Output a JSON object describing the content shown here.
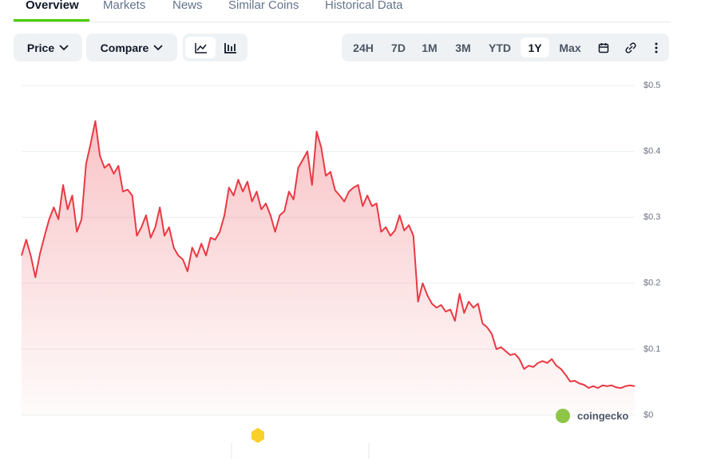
{
  "tabs": [
    "Overview",
    "Markets",
    "News",
    "Similar Coins",
    "Historical Data"
  ],
  "controls": [
    "Price",
    "Compare"
  ],
  "ranges": [
    "24H",
    "7D",
    "1M",
    "3M",
    "YTD",
    "1Y",
    "Max"
  ],
  "watermark": "coingecko",
  "chart_data": {
    "type": "line",
    "series": [
      {
        "color": "#ea3943",
        "values": [
          0.242,
          0.266,
          0.242,
          0.209,
          0.245,
          0.272,
          0.297,
          0.315,
          0.297,
          0.349,
          0.312,
          0.333,
          0.278,
          0.297,
          0.381,
          0.412,
          0.446,
          0.393,
          0.375,
          0.381,
          0.366,
          0.378,
          0.339,
          0.342,
          0.333,
          0.272,
          0.285,
          0.303,
          0.269,
          0.285,
          0.315,
          0.272,
          0.285,
          0.254,
          0.242,
          0.236,
          0.218,
          0.254,
          0.24,
          0.26,
          0.242,
          0.269,
          0.266,
          0.278,
          0.303,
          0.345,
          0.333,
          0.357,
          0.339,
          0.354,
          0.324,
          0.339,
          0.312,
          0.321,
          0.303,
          0.278,
          0.303,
          0.309,
          0.339,
          0.327,
          0.375,
          0.387,
          0.4,
          0.349,
          0.43,
          0.406,
          0.363,
          0.369,
          0.341,
          0.333,
          0.324,
          0.339,
          0.345,
          0.349,
          0.317,
          0.333,
          0.317,
          0.321,
          0.278,
          0.285,
          0.272,
          0.28,
          0.303,
          0.28,
          0.288,
          0.272,
          0.172,
          0.2,
          0.182,
          0.169,
          0.163,
          0.167,
          0.157,
          0.16,
          0.143,
          0.184,
          0.155,
          0.172,
          0.163,
          0.169,
          0.139,
          0.133,
          0.123,
          0.1,
          0.103,
          0.097,
          0.091,
          0.093,
          0.085,
          0.07,
          0.075,
          0.073,
          0.079,
          0.082,
          0.079,
          0.085,
          0.075,
          0.07,
          0.061,
          0.051,
          0.052,
          0.048,
          0.046,
          0.041,
          0.044,
          0.041,
          0.045,
          0.044,
          0.045,
          0.042,
          0.041,
          0.044,
          0.045,
          0.044
        ]
      }
    ],
    "ylim": [
      0,
      0.5
    ],
    "yticks": [
      {
        "value": 0,
        "label": "$0"
      },
      {
        "value": 0.1,
        "label": "$0.1"
      },
      {
        "value": 0.2,
        "label": "$0.2"
      },
      {
        "value": 0.3,
        "label": "$0.3"
      },
      {
        "value": 0.4,
        "label": "$0.4"
      },
      {
        "value": 0.5,
        "label": "$0.5"
      }
    ],
    "grid": true
  }
}
